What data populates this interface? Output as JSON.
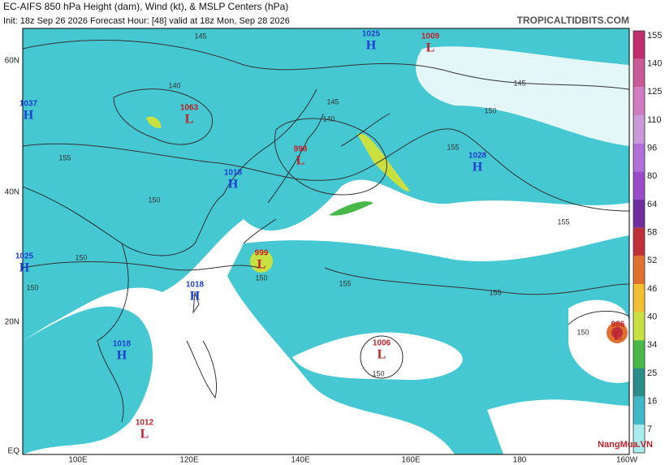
{
  "header": {
    "title": "EC-AIFS 850 hPa Height (dam), Wind (kt), & MSLP Centers (hPa)",
    "subtitle": "Init: 18z Sep 26 2026   Forecast Hour: [48]   valid at 18z Mon, Sep 28 2026",
    "site": "TROPICALTIDBITS.COM"
  },
  "latitude_labels": [
    "60N",
    "40N",
    "20N",
    "EQ"
  ],
  "longitude_labels": [
    "100E",
    "120E",
    "140E",
    "160E",
    "180",
    "160W"
  ],
  "pressure_centers": [
    {
      "type": "H",
      "value": "1037"
    },
    {
      "type": "L",
      "value": "1063"
    },
    {
      "type": "H",
      "value": "1025"
    },
    {
      "type": "L",
      "value": "1009"
    },
    {
      "type": "L",
      "value": "998"
    },
    {
      "type": "H",
      "value": "1018"
    },
    {
      "type": "H",
      "value": "1028"
    },
    {
      "type": "H",
      "value": "1025"
    },
    {
      "type": "L",
      "value": "999"
    },
    {
      "type": "H",
      "value": "1018"
    },
    {
      "type": "H",
      "value": "1018"
    },
    {
      "type": "L",
      "value": "1006"
    },
    {
      "type": "L",
      "value": "986"
    },
    {
      "type": "L",
      "value": "1012"
    }
  ],
  "contour_labels": [
    "145",
    "140",
    "145",
    "140",
    "145",
    "150",
    "155",
    "155",
    "150",
    "155",
    "150",
    "150",
    "155",
    "155",
    "150",
    "150",
    "150"
  ],
  "colorbar": {
    "ticks": [
      "155",
      "140",
      "125",
      "110",
      "96",
      "80",
      "64",
      "58",
      "52",
      "46",
      "40",
      "34",
      "25",
      "16",
      "7"
    ],
    "colors": [
      "#c0306f",
      "#c85a9a",
      "#d07cc0",
      "#c89ad8",
      "#b070d8",
      "#9a4cc8",
      "#6e2ea0",
      "#c0303a",
      "#e07030",
      "#f0c030",
      "#c8e040",
      "#48b848",
      "#2a8f8a",
      "#40b8c8",
      "#a8ecf0"
    ]
  },
  "watermark": "NangMua.VN"
}
